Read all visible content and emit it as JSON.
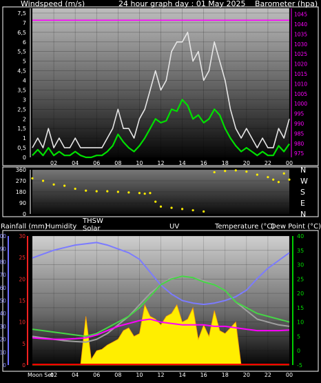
{
  "chart_data": [
    {
      "type": "line",
      "title": "24 hour graph day : 01 May 2025",
      "ylabel": "Windspeed (m/s)",
      "y2label": "Barometer (hpa)",
      "x_ticks": [
        "02",
        "04",
        "06",
        "08",
        "10",
        "12",
        "14",
        "16",
        "18",
        "20",
        "22",
        "00"
      ],
      "y_ticks": [
        "7,5",
        "7",
        "6,5",
        "6",
        "5,5",
        "5",
        "4,5",
        "4",
        "3,5",
        "3",
        "2,5",
        "2",
        "1,5",
        "1",
        "0,5",
        "0"
      ],
      "y_tick_values": [
        7.5,
        7,
        6.5,
        6,
        5.5,
        5,
        4.5,
        4,
        3.5,
        3,
        2.5,
        2,
        1.5,
        1,
        0.5,
        0
      ],
      "y2_ticks": [
        "1045",
        "1040",
        "1035",
        "1030",
        "1025",
        "1020",
        "1015",
        "1010",
        "1005",
        "1000",
        "995",
        "990",
        "985",
        "980",
        "975"
      ],
      "y2_tick_values": [
        1045,
        1040,
        1035,
        1030,
        1025,
        1020,
        1015,
        1010,
        1005,
        1000,
        995,
        990,
        985,
        980,
        975
      ],
      "ylim": [
        0,
        7.75
      ],
      "y2lim": [
        973,
        1048
      ],
      "grid": true,
      "series": [
        {
          "color": "#e6e6e6",
          "axis": "left",
          "x": [
            0,
            0.5,
            1,
            1.5,
            2,
            2.5,
            3,
            3.5,
            4,
            4.5,
            5,
            5.5,
            6,
            6.5,
            7,
            7.5,
            8,
            8.5,
            9,
            9.5,
            10,
            10.5,
            11,
            11.5,
            12,
            12.5,
            13,
            13.5,
            14,
            14.5,
            15,
            15.5,
            16,
            16.5,
            17,
            17.5,
            18,
            18.5,
            19,
            19.5,
            20,
            20.5,
            21,
            21.5,
            22,
            22.5,
            23,
            23.5,
            24
          ],
          "y": [
            0.5,
            1,
            0.5,
            1.5,
            0.5,
            1,
            0.5,
            0.5,
            1,
            0.5,
            0.5,
            0.5,
            0.5,
            0.5,
            1,
            1.5,
            2.5,
            1.5,
            1.5,
            1,
            2,
            2.5,
            3.5,
            4.5,
            3.5,
            4,
            5.5,
            6,
            6,
            6.5,
            5,
            5.5,
            4,
            4.5,
            6,
            5,
            4,
            2.5,
            1.5,
            1,
            1.5,
            1,
            0.5,
            1,
            0.5,
            0.5,
            1.5,
            1,
            2
          ]
        },
        {
          "color": "#00e000",
          "axis": "left",
          "x": [
            0,
            0.5,
            1,
            1.5,
            2,
            2.5,
            3,
            3.5,
            4,
            4.5,
            5,
            5.5,
            6,
            6.5,
            7,
            7.5,
            8,
            8.5,
            9,
            9.5,
            10,
            10.5,
            11,
            11.5,
            12,
            12.5,
            13,
            13.5,
            14,
            14.5,
            15,
            15.5,
            16,
            16.5,
            17,
            17.5,
            18,
            18.5,
            19,
            19.5,
            20,
            20.5,
            21,
            21.5,
            22,
            22.5,
            23,
            23.5,
            24
          ],
          "y": [
            0.1,
            0.4,
            0.1,
            0.5,
            0.1,
            0.3,
            0.1,
            0.1,
            0.3,
            0.1,
            0,
            0,
            0.1,
            0.1,
            0.3,
            0.6,
            1.2,
            0.8,
            0.5,
            0.3,
            0.6,
            1,
            1.5,
            2,
            1.8,
            1.9,
            2.5,
            2.4,
            3,
            2.7,
            2,
            2.2,
            1.8,
            2,
            2.5,
            2.2,
            1.5,
            1,
            0.6,
            0.3,
            0.5,
            0.3,
            0.1,
            0.3,
            0.1,
            0.1,
            0.6,
            0.3,
            0.7
          ]
        },
        {
          "color": "#ff00ff",
          "axis": "right",
          "x": [
            0,
            24
          ],
          "y": [
            1042,
            1042
          ]
        }
      ]
    },
    {
      "type": "scatter",
      "ylabel_right": [
        "N",
        "W",
        "S",
        "E",
        "N"
      ],
      "y_ticks": [
        "360",
        "270",
        "180",
        "90",
        "0"
      ],
      "y_tick_values": [
        360,
        270,
        180,
        90,
        0
      ],
      "ylim": [
        0,
        360
      ],
      "series": [
        {
          "color": "#ffee00",
          "x": [
            0,
            1,
            2,
            3,
            4,
            5,
            6,
            7,
            8,
            9,
            10,
            10.5,
            11,
            11.5,
            12,
            13,
            14,
            15,
            16,
            17,
            18,
            19,
            20,
            21,
            22,
            22.5,
            23,
            23.5,
            24
          ],
          "y": [
            290,
            270,
            240,
            230,
            205,
            190,
            185,
            185,
            180,
            175,
            170,
            165,
            170,
            100,
            60,
            50,
            40,
            30,
            20,
            340,
            350,
            355,
            345,
            320,
            300,
            280,
            260,
            330,
            280
          ]
        }
      ]
    },
    {
      "type": "line",
      "legend": [
        "Rainfall (mm)",
        "Humidity",
        "THSW",
        "Solar",
        "UV",
        "Temperature (°C)",
        "Dew Point (°C)"
      ],
      "x_ticks": [
        "Moon Set",
        "02",
        "04",
        "06",
        "08",
        "10",
        "12",
        "14",
        "16",
        "18",
        "20",
        "22",
        "00"
      ],
      "y_ticks_humidity": [
        "100",
        "90",
        "80",
        "70",
        "60",
        "50",
        "40",
        "30",
        "20",
        "10",
        "0"
      ],
      "y_ticks_rain": [
        "30",
        "25",
        "20",
        "15",
        "10",
        "5",
        "0"
      ],
      "y_ticks_temp": [
        "40",
        "35",
        "30",
        "25",
        "20",
        "15",
        "10",
        "5",
        "0",
        "-5"
      ],
      "humidity_lim": [
        0,
        100
      ],
      "temperature_lim": [
        -5,
        40
      ],
      "grid": true,
      "series": [
        {
          "name": "Humidity",
          "color": "#7b7bff",
          "x": [
            0,
            1,
            2,
            3,
            4,
            5,
            6,
            7,
            8,
            9,
            10,
            11,
            12,
            13,
            14,
            15,
            16,
            17,
            18,
            19,
            20,
            21,
            22,
            23,
            24
          ],
          "y": [
            83,
            86,
            89,
            91,
            93,
            94,
            95,
            93,
            90,
            87,
            82,
            72,
            62,
            55,
            50,
            48,
            47,
            48,
            50,
            53,
            58,
            67,
            75,
            81,
            87
          ]
        },
        {
          "name": "Temperature (°C)",
          "color": "#46d646",
          "x": [
            0,
            1,
            2,
            3,
            4,
            5,
            6,
            7,
            8,
            9,
            10,
            11,
            12,
            13,
            14,
            15,
            16,
            17,
            18,
            19,
            20,
            21,
            22,
            23,
            24
          ],
          "y": [
            7.5,
            7,
            6.5,
            6,
            5.5,
            5,
            6,
            8,
            10,
            12,
            15,
            19,
            23,
            25,
            26,
            25.5,
            24,
            23,
            21,
            17,
            15,
            13,
            12,
            11,
            10
          ]
        },
        {
          "name": "THSW",
          "color": "#a0a0a0",
          "x": [
            0,
            1,
            2,
            3,
            4,
            5,
            6,
            7,
            8,
            9,
            10,
            11,
            12,
            13,
            14,
            15,
            16,
            17,
            18,
            19,
            20,
            21,
            22,
            23,
            24
          ],
          "y": [
            5,
            4.5,
            4,
            3.5,
            3.2,
            3,
            4,
            6,
            9,
            12,
            16,
            20,
            23,
            25.5,
            26,
            25.5,
            24.5,
            23,
            21,
            17,
            14,
            11,
            10,
            9,
            8.5
          ]
        },
        {
          "name": "Dew Point (°C)",
          "color": "#ff00ff",
          "x": [
            0,
            1,
            2,
            3,
            4,
            5,
            6,
            7,
            8,
            9,
            10,
            11,
            12,
            13,
            14,
            15,
            16,
            17,
            18,
            19,
            20,
            21,
            22,
            23,
            24
          ],
          "y": [
            4.5,
            4.2,
            4,
            4,
            4.2,
            4.5,
            5.5,
            7,
            8.5,
            9.5,
            10.5,
            11,
            10,
            9.5,
            9,
            9,
            9,
            8.5,
            8.5,
            8,
            7.5,
            7,
            7,
            7,
            7.2
          ]
        },
        {
          "name": "Solar",
          "color": "#ffee00",
          "x": [
            0,
            4,
            4.5,
            5,
            5.5,
            6,
            6.5,
            7,
            7.5,
            8,
            8.5,
            9,
            9.5,
            10,
            10.5,
            11,
            11.5,
            12,
            12.5,
            13,
            13.5,
            14,
            14.5,
            15,
            15.5,
            16,
            16.5,
            17,
            17.5,
            18,
            18.5,
            19,
            19.5,
            24
          ],
          "y": [
            -5,
            -5,
            -5,
            12,
            -3,
            0,
            0.5,
            2,
            3,
            4,
            7,
            8,
            5,
            6,
            16,
            12,
            11,
            9,
            12,
            13,
            16,
            10,
            11,
            15,
            4,
            9,
            5,
            14,
            7,
            6,
            8,
            10,
            -5,
            -5
          ]
        },
        {
          "name": "Rainfall (mm)",
          "color": "#ff0000",
          "x": [
            0,
            24
          ],
          "y": [
            0,
            0
          ]
        }
      ]
    }
  ]
}
